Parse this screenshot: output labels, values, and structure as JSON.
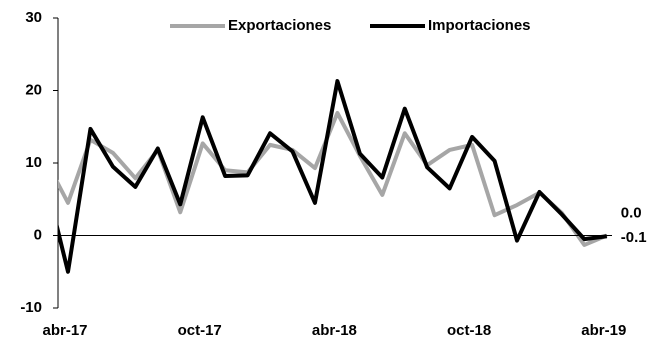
{
  "chart_data": {
    "type": "line",
    "categories": [
      null,
      "abr-17",
      null,
      null,
      null,
      null,
      null,
      "oct-17",
      null,
      null,
      null,
      null,
      null,
      "abr-18",
      null,
      null,
      null,
      null,
      null,
      "oct-18",
      null,
      null,
      null,
      null,
      null,
      "abr-19"
    ],
    "series": [
      {
        "name": "Exportaciones",
        "color": "#a6a6a6",
        "values": [
          10.4,
          4.5,
          13.2,
          11.4,
          7.9,
          11.8,
          3.2,
          12.7,
          9,
          8.7,
          12.5,
          11.8,
          9.3,
          16.9,
          11,
          5.6,
          14.1,
          9.7,
          11.8,
          12.5,
          2.8,
          4.2,
          5.9,
          3.1,
          -1.3,
          0
        ],
        "value_labels": [
          null,
          null,
          null,
          null,
          null,
          null,
          null,
          null,
          null,
          null,
          null,
          null,
          null,
          null,
          null,
          null,
          null,
          null,
          null,
          null,
          null,
          null,
          null,
          null,
          null,
          "0.0"
        ]
      },
      {
        "name": "Importaciones",
        "color": "#000000",
        "values": [
          7.6,
          -5,
          14.7,
          9.5,
          6.7,
          12,
          4.3,
          16.3,
          8.2,
          8.3,
          14.1,
          11.6,
          4.5,
          21.3,
          11.3,
          8,
          17.5,
          9.4,
          6.5,
          13.6,
          10.3,
          -0.7,
          6,
          2.9,
          -0.5,
          -0.1
        ],
        "value_labels": [
          null,
          null,
          null,
          null,
          null,
          null,
          null,
          null,
          null,
          null,
          null,
          null,
          null,
          null,
          null,
          null,
          null,
          null,
          null,
          null,
          null,
          null,
          null,
          null,
          null,
          "-0.1"
        ]
      }
    ],
    "ylim": [
      -10,
      30
    ],
    "yticks": [
      -10,
      0,
      10,
      20,
      30
    ],
    "grid": false
  }
}
